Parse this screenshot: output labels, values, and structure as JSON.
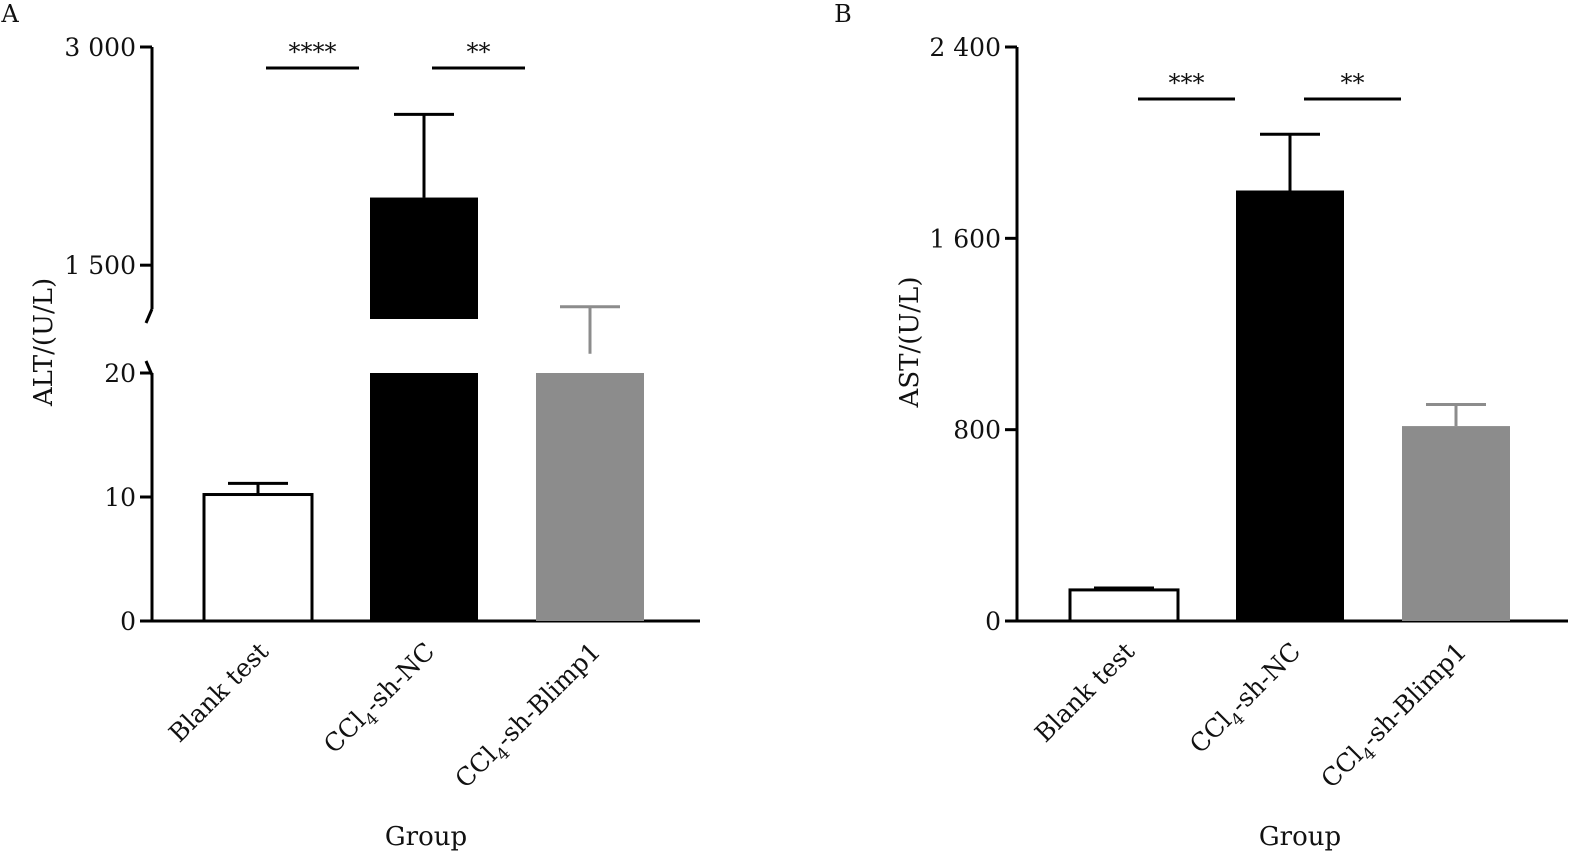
{
  "chart_data": [
    {
      "panel": "A",
      "type": "bar",
      "title": "",
      "xlabel": "Group",
      "ylabel": "ALT/(U/L)",
      "categories": [
        "Blank test",
        "CCl4-sh-NC",
        "CCl4-sh-Blimp1"
      ],
      "category_labels": [
        {
          "main": "Blank test",
          "sub": "",
          "rest": ""
        },
        {
          "main": "CCl",
          "sub": "4",
          "rest": "-sh-NC"
        },
        {
          "main": "CCl",
          "sub": "4",
          "rest": "-sh-Blimp1"
        }
      ],
      "values": [
        10.2,
        1965,
        891
      ],
      "errors": [
        0.9,
        572,
        323
      ],
      "fills": [
        "#ffffff",
        "#000000",
        "#8c8c8c"
      ],
      "axis_break": {
        "lower": [
          0,
          20
        ],
        "upper": [
          0,
          3000
        ],
        "upper_visible_from": 1130
      },
      "yticks_lower": [
        0,
        10,
        20
      ],
      "yticks_upper": [
        1500,
        3000
      ],
      "ytick_labels_lower": [
        "0",
        "10",
        "20"
      ],
      "ytick_labels_upper": [
        "1 500",
        "3 000"
      ],
      "significance": [
        {
          "from": 0,
          "to": 1,
          "label": "****"
        },
        {
          "from": 1,
          "to": 2,
          "label": "**"
        }
      ]
    },
    {
      "panel": "B",
      "type": "bar",
      "title": "",
      "xlabel": "Group",
      "ylabel": "AST/(U/L)",
      "categories": [
        "Blank test",
        "CCl4-sh-NC",
        "CCl4-sh-Blimp1"
      ],
      "category_labels": [
        {
          "main": "Blank test",
          "sub": "",
          "rest": ""
        },
        {
          "main": "CCl",
          "sub": "4",
          "rest": "-sh-NC"
        },
        {
          "main": "CCl",
          "sub": "4",
          "rest": "-sh-Blimp1"
        }
      ],
      "values": [
        130,
        1800,
        815
      ],
      "errors": [
        8,
        235,
        90
      ],
      "fills": [
        "#ffffff",
        "#000000",
        "#8c8c8c"
      ],
      "ylim": [
        0,
        2400
      ],
      "yticks": [
        0,
        800,
        1600,
        2400
      ],
      "ytick_labels": [
        "0",
        "800",
        "1 600",
        "2 400"
      ],
      "significance": [
        {
          "from": 0,
          "to": 1,
          "label": "***"
        },
        {
          "from": 1,
          "to": 2,
          "label": "**"
        }
      ]
    }
  ]
}
